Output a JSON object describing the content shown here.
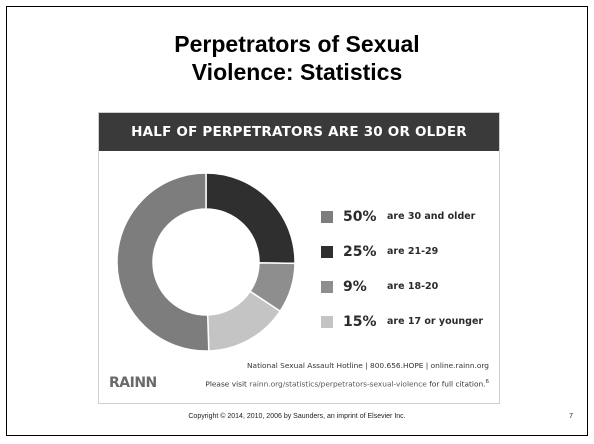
{
  "slide": {
    "title_line1": "Perpetrators of Sexual",
    "title_line2": "Violence: Statistics",
    "copyright": "Copyright © 2014, 2010, 2006 by Saunders, an imprint of Elsevier Inc.",
    "page_number": "7"
  },
  "infographic": {
    "footer_line1": "National Sexual Assault Hotline | 800.656.HOPE | online.rainn.org",
    "footer_line2_prefix": "Please visit ",
    "footer_line2_link": "rainn.org/statistics/perpetrators-sexual-violence",
    "footer_line2_suffix": " for full citation.",
    "footer_citation_mark": "6",
    "logo_text": "RAINN"
  },
  "chart_data": {
    "type": "pie",
    "title": "HALF OF PERPETRATORS ARE 30 OR OLDER",
    "series": [
      {
        "label": "50%",
        "description": "are 30 and older",
        "value": 50,
        "color": "#7d7d7d"
      },
      {
        "label": "25%",
        "description": "are 21-29",
        "value": 25,
        "color": "#2f2f2f"
      },
      {
        "label": "9%",
        "description": "are 18-20",
        "value": 9,
        "color": "#8e8e8e"
      },
      {
        "label": "15%",
        "description": "are 17 or younger",
        "value": 15,
        "color": "#c4c4c4"
      }
    ],
    "donut": true,
    "legend_position": "right"
  }
}
